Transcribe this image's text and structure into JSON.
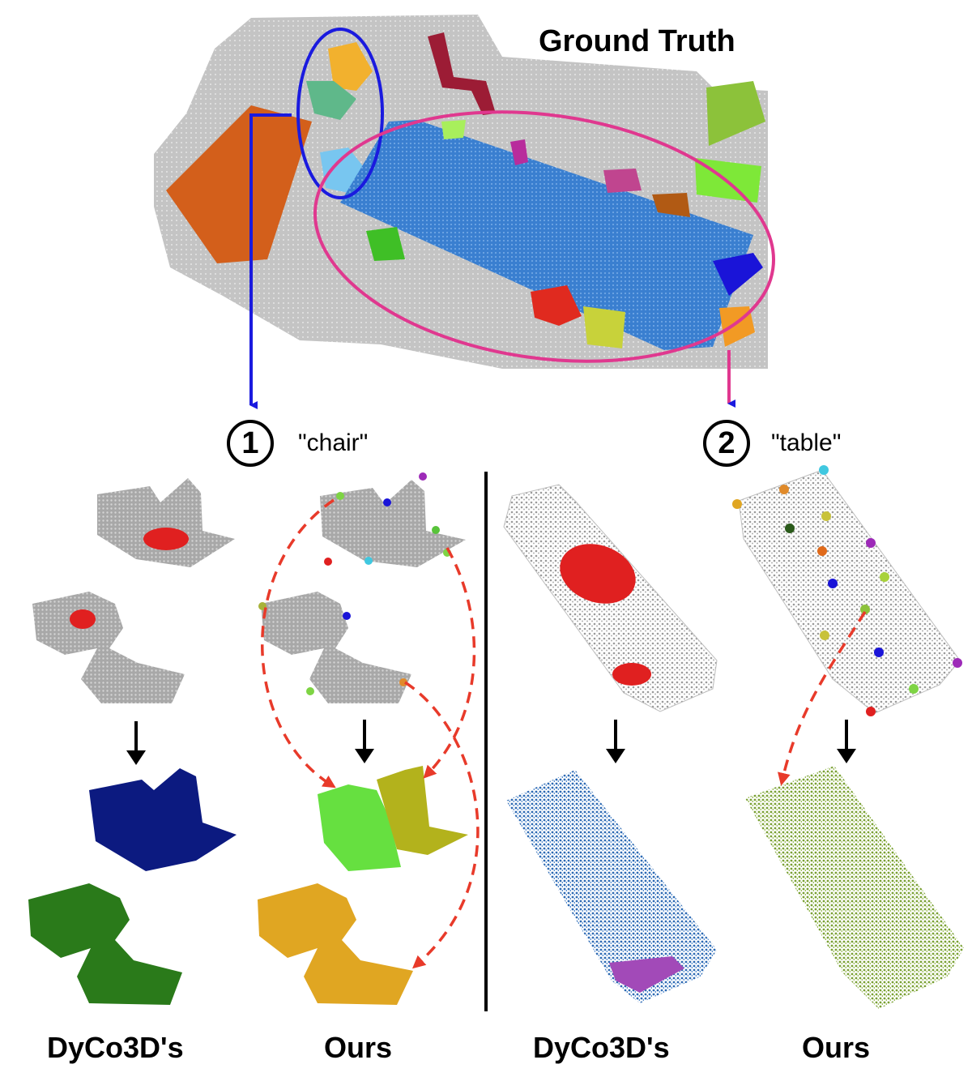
{
  "title": "Ground Truth",
  "steps": [
    {
      "number": "1",
      "category": "\"chair\""
    },
    {
      "number": "2",
      "category": "\"table\""
    }
  ],
  "method_labels": [
    "DyCo3D's",
    "Ours",
    "DyCo3D's",
    "Ours"
  ],
  "colors": {
    "chair_circle": "#1a1adf",
    "table_circle": "#e0388f",
    "table_gt": "#3a7fd0",
    "arrow": "#e83a2a",
    "dyco_chair_a": "#0c1a80",
    "dyco_chair_b": "#2a7a1a",
    "ours_chair_a": "#66e040",
    "ours_chair_b": "#b3b21c",
    "ours_chair_c": "#e0a622",
    "dyco_table": "#2e6ab3",
    "ours_table": "#7aa034",
    "cloud_gray": "#b8b8b8"
  }
}
